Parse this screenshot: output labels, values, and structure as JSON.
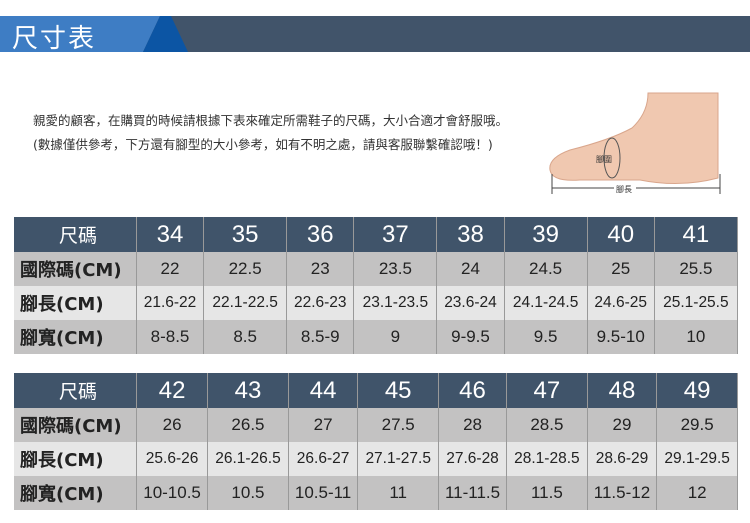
{
  "header": {
    "title": "尺寸表"
  },
  "intro": "親愛的顧客，在購買的時候請根據下表來確定所需鞋子的尺碼，大小合適才會舒服哦。 (數據僅供參考，下方還有腳型的大小參考，如有不明之處，請與客服聯繫確認哦！)",
  "foot_image": {
    "girth_label": "腳圍",
    "length_label": "腳長"
  },
  "row_labels": [
    "尺碼",
    "國際碼(CM)",
    "腳長(CM)",
    "腳寬(CM)"
  ],
  "tables": [
    {
      "sizes": [
        "34",
        "35",
        "36",
        "37",
        "38",
        "39",
        "40",
        "41"
      ],
      "intl": [
        "22",
        "22.5",
        "23",
        "23.5",
        "24",
        "24.5",
        "25",
        "25.5"
      ],
      "length": [
        "21.6-22",
        "22.1-22.5",
        "22.6-23",
        "23.1-23.5",
        "23.6-24",
        "24.1-24.5",
        "24.6-25",
        "25.1-25.5"
      ],
      "width": [
        "8-8.5",
        "8.5",
        "8.5-9",
        "9",
        "9-9.5",
        "9.5",
        "9.5-10",
        "10"
      ]
    },
    {
      "sizes": [
        "42",
        "43",
        "44",
        "45",
        "46",
        "47",
        "48",
        "49"
      ],
      "intl": [
        "26",
        "26.5",
        "27",
        "27.5",
        "28",
        "28.5",
        "29",
        "29.5"
      ],
      "length": [
        "25.6-26",
        "26.1-26.5",
        "26.6-27",
        "27.1-27.5",
        "27.6-28",
        "28.1-28.5",
        "28.6-29",
        "29.1-29.5"
      ],
      "width": [
        "10-10.5",
        "10.5",
        "10.5-11",
        "11",
        "11-11.5",
        "11.5",
        "11.5-12",
        "12"
      ]
    }
  ]
}
